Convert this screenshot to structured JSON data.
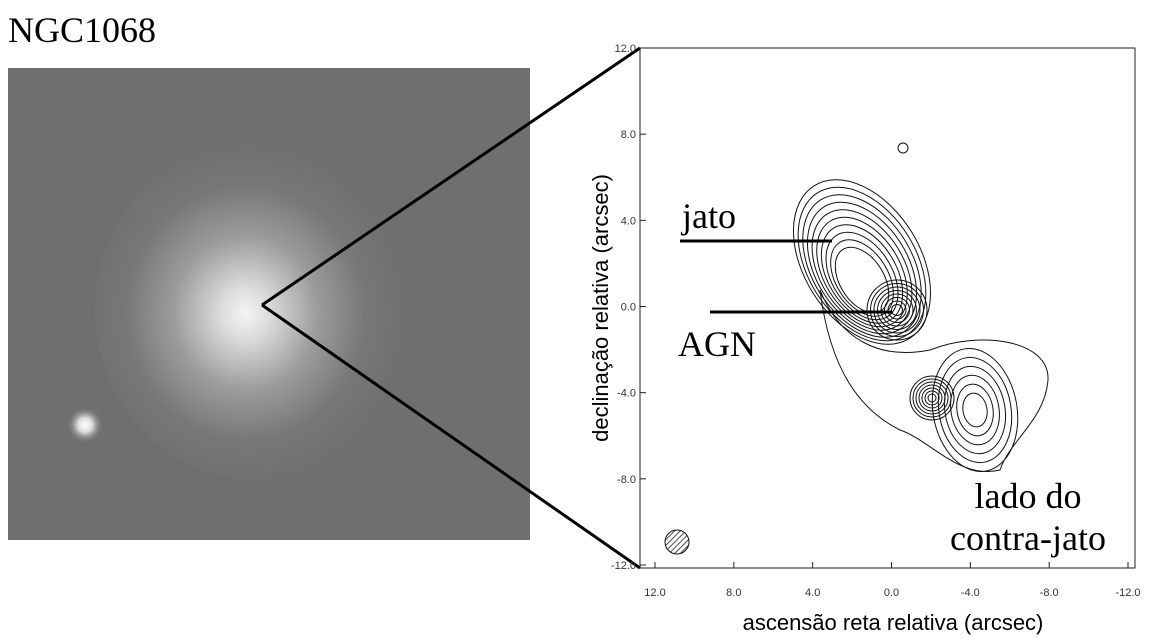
{
  "title": "NGC1068",
  "chart_data": {
    "type": "contour",
    "xlabel": "ascensão reta relativa (arcsec)",
    "ylabel": "declinação relativa (arcsec)",
    "xlim": [
      12,
      -12
    ],
    "ylim": [
      -12,
      12
    ],
    "xticks": [
      {
        "value": 12,
        "label": "12.0"
      },
      {
        "value": 8,
        "label": "8.0"
      },
      {
        "value": 4,
        "label": "4.0"
      },
      {
        "value": 0,
        "label": "0.0"
      },
      {
        "value": -4,
        "label": "-4.0"
      },
      {
        "value": -8,
        "label": "-8.0"
      },
      {
        "value": -12,
        "label": "-12.0"
      }
    ],
    "yticks": [
      {
        "value": 12,
        "label": "12.0"
      },
      {
        "value": 8,
        "label": "8.0"
      },
      {
        "value": 4,
        "label": "4.0"
      },
      {
        "value": 0,
        "label": "0.0"
      },
      {
        "value": -4,
        "label": "-4.0"
      },
      {
        "value": -8,
        "label": "-8.0"
      },
      {
        "value": -12,
        "label": "-12.0"
      }
    ],
    "annotations": [
      "jato",
      "AGN",
      "lado do",
      "contra-jato"
    ]
  }
}
